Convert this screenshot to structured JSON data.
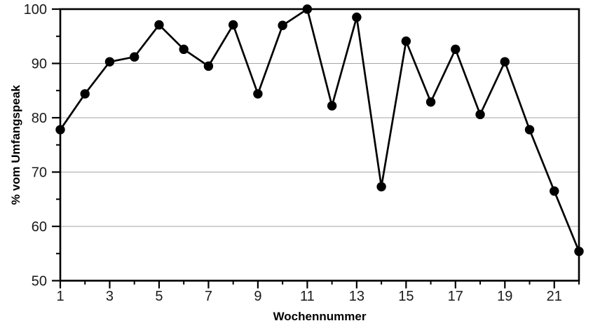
{
  "chart_data": {
    "type": "line",
    "title": "",
    "xlabel": "Wochennummer",
    "ylabel": "% vom Umfangspeak",
    "series": [
      {
        "name": "% vom Umfangspeak",
        "x": [
          1,
          2,
          3,
          4,
          5,
          6,
          7,
          8,
          9,
          10,
          11,
          12,
          13,
          14,
          15,
          16,
          17,
          18,
          19,
          20,
          21,
          22
        ],
        "values": [
          77.8,
          84.4,
          90.3,
          91.2,
          97.1,
          92.6,
          89.5,
          97.1,
          84.4,
          97.0,
          100.0,
          82.2,
          98.5,
          67.3,
          94.1,
          82.9,
          92.6,
          80.6,
          90.3,
          77.8,
          66.5,
          55.4
        ]
      }
    ],
    "xlim": [
      1,
      22
    ],
    "ylim": [
      50,
      100
    ],
    "x_major_ticks": [
      1,
      3,
      5,
      7,
      9,
      11,
      13,
      15,
      17,
      19,
      21
    ],
    "x_minor_ticks": [
      2,
      4,
      6,
      8,
      10,
      12,
      14,
      16,
      18,
      20,
      22
    ],
    "x_tick_labels": [
      "1",
      "3",
      "5",
      "7",
      "9",
      "11",
      "13",
      "15",
      "17",
      "19",
      "21"
    ],
    "y_major_ticks": [
      50,
      60,
      70,
      80,
      90,
      100
    ],
    "y_minor_ticks": [
      55,
      65,
      75,
      85,
      95
    ],
    "y_tick_labels": [
      "50",
      "60",
      "70",
      "80",
      "90",
      "100"
    ],
    "gridlines_y": [
      60,
      70,
      80,
      90
    ],
    "grid": "horizontal-major-only",
    "legend": "none",
    "marker": "filled-circle",
    "colors": {
      "line": "#000000",
      "marker": "#000000",
      "grid": "#a6a6a6",
      "frame": "#000000",
      "tick": "#000000",
      "text": "#1a1a1a",
      "background": "#ffffff"
    }
  }
}
